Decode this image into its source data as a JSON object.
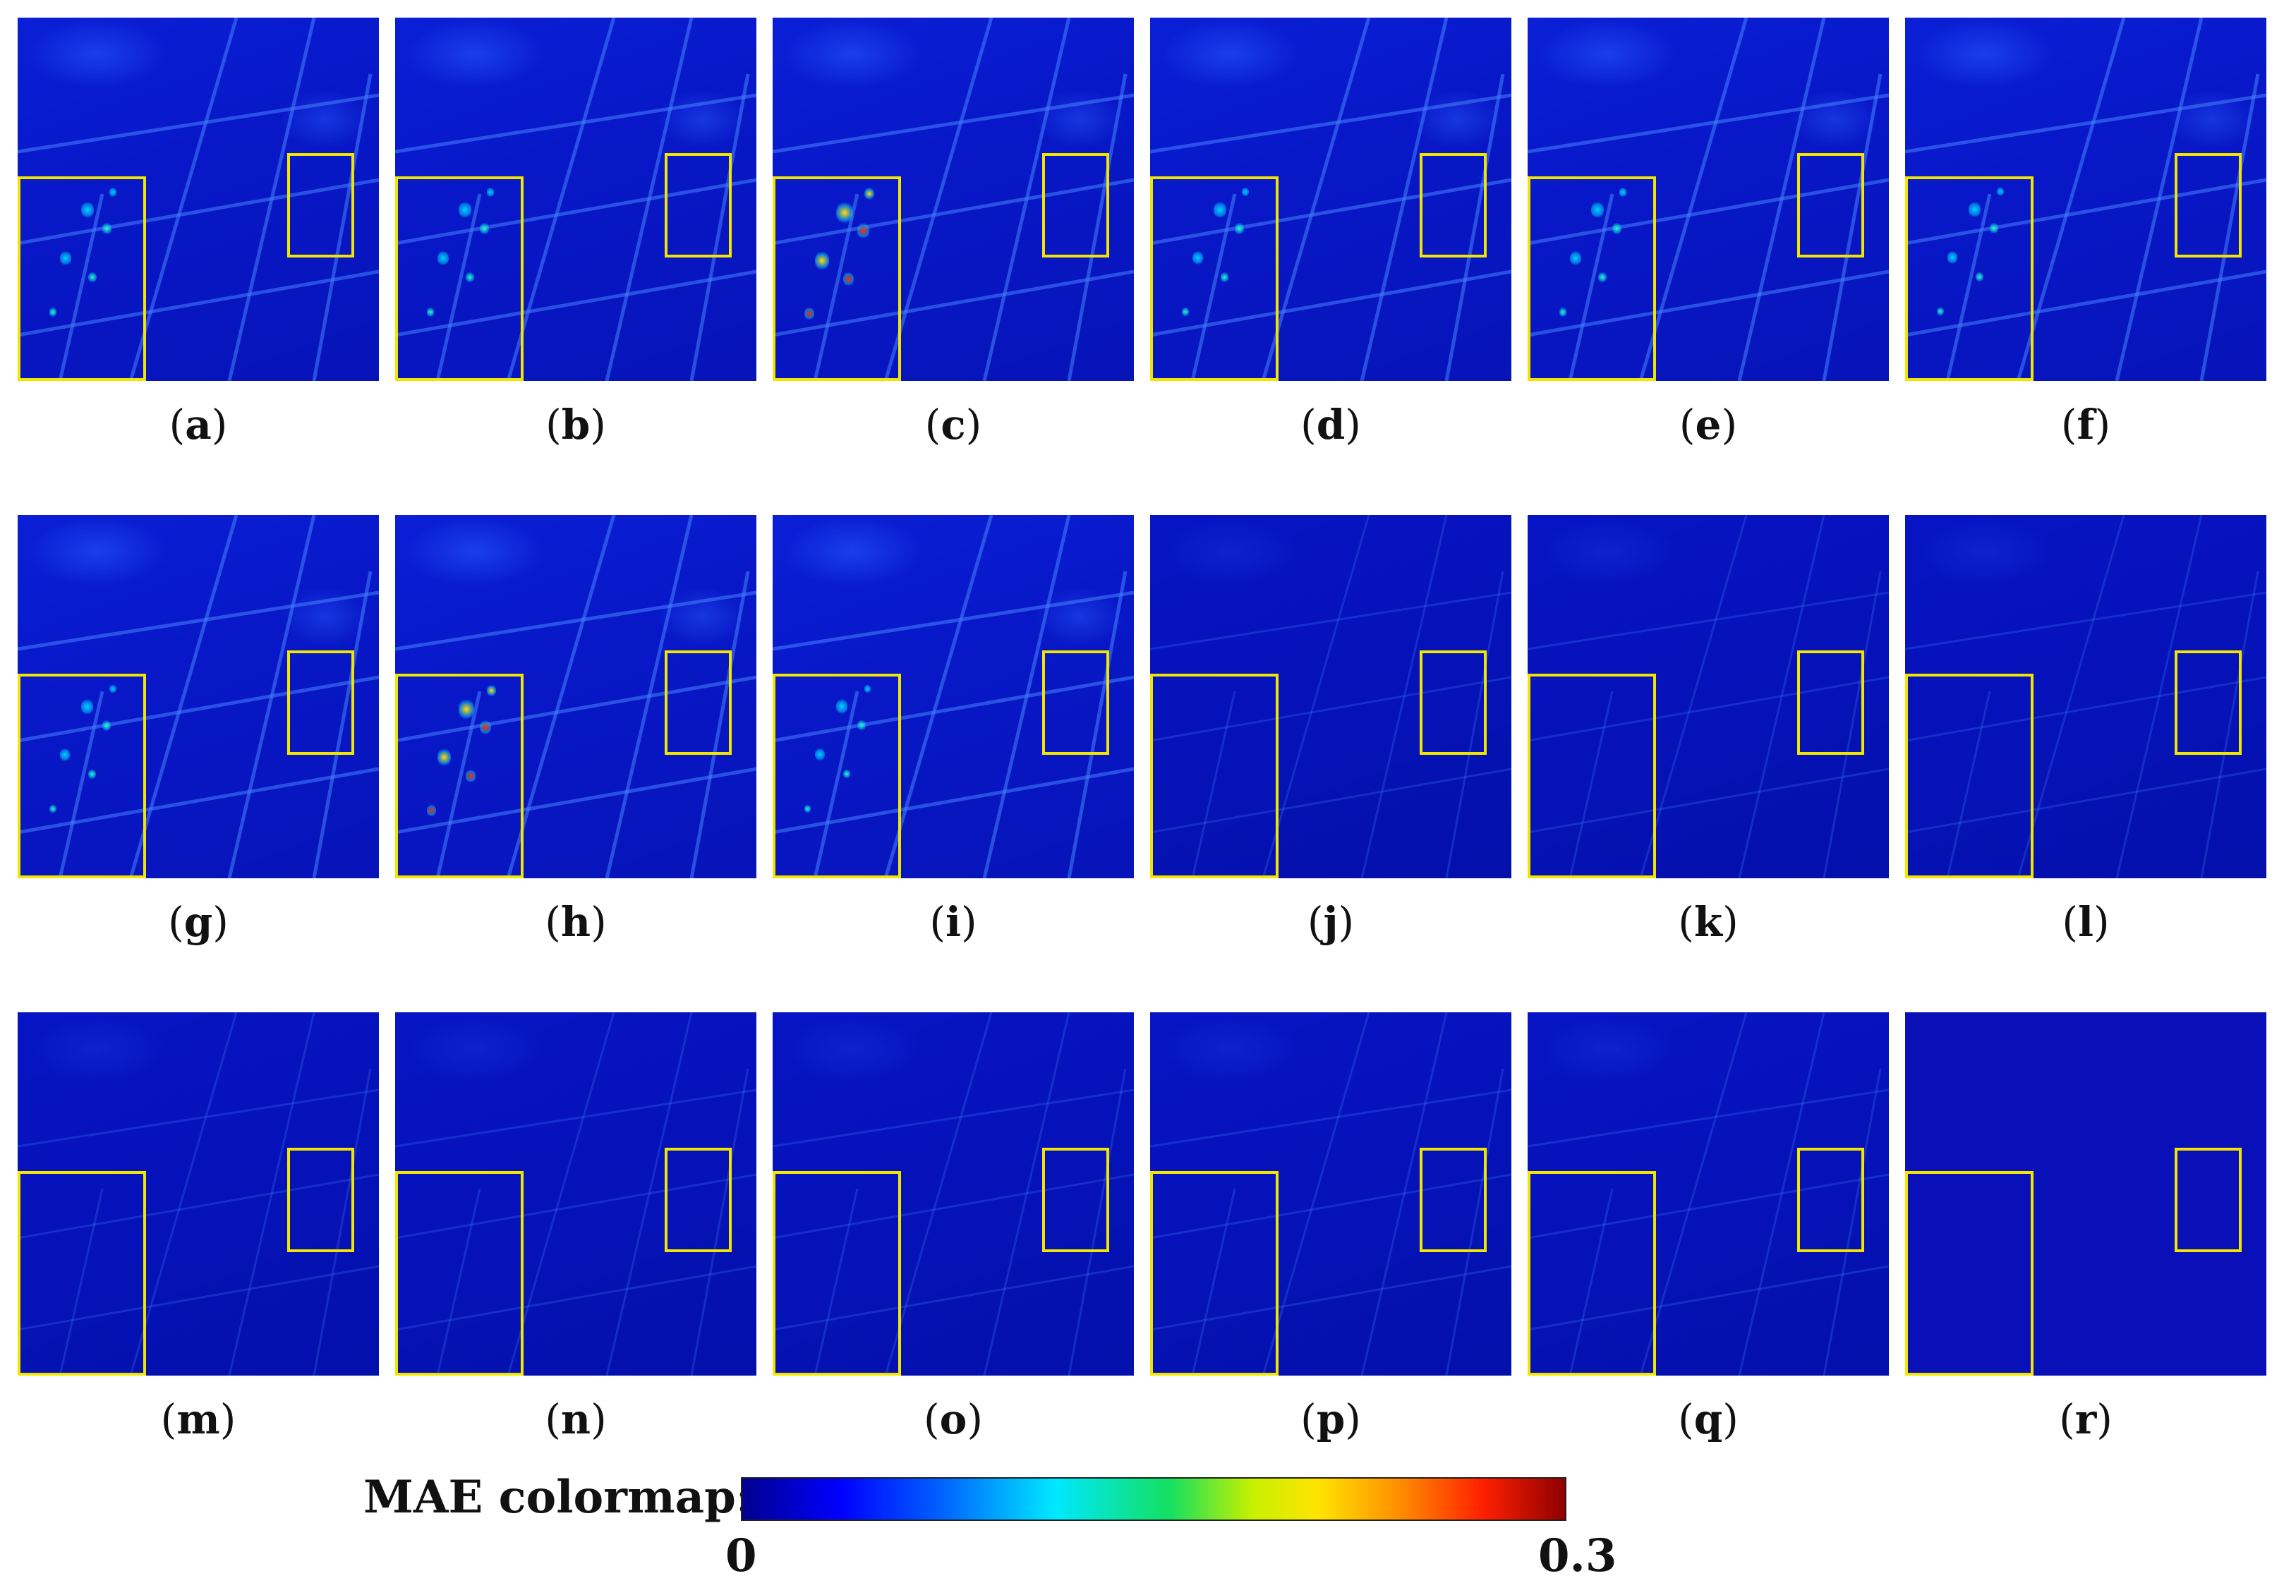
{
  "panels": [
    {
      "label": "(a)",
      "letter": "a",
      "style": "noisy",
      "level": 0.6
    },
    {
      "label": "(b)",
      "letter": "b",
      "style": "noisy",
      "level": 0.6
    },
    {
      "label": "(c)",
      "letter": "c",
      "style": "noisy",
      "level": 1.0
    },
    {
      "label": "(d)",
      "letter": "d",
      "style": "noisy",
      "level": 0.55
    },
    {
      "label": "(e)",
      "letter": "e",
      "style": "noisy",
      "level": 0.6
    },
    {
      "label": "(f)",
      "letter": "f",
      "style": "noisy",
      "level": 0.5
    },
    {
      "label": "(g)",
      "letter": "g",
      "style": "noisy",
      "level": 0.5
    },
    {
      "label": "(h)",
      "letter": "h",
      "style": "noisy",
      "level": 0.9
    },
    {
      "label": "(i)",
      "letter": "i",
      "style": "noisy",
      "level": 0.45
    },
    {
      "label": "(j)",
      "letter": "j",
      "style": "calm",
      "level": 0.15
    },
    {
      "label": "(k)",
      "letter": "k",
      "style": "calm",
      "level": 0.1
    },
    {
      "label": "(l)",
      "letter": "l",
      "style": "calm",
      "level": 0.12
    },
    {
      "label": "(m)",
      "letter": "m",
      "style": "calm",
      "level": 0.15
    },
    {
      "label": "(n)",
      "letter": "n",
      "style": "calm",
      "level": 0.18
    },
    {
      "label": "(o)",
      "letter": "o",
      "style": "calm",
      "level": 0.1
    },
    {
      "label": "(p)",
      "letter": "p",
      "style": "calm",
      "level": 0.1
    },
    {
      "label": "(q)",
      "letter": "q",
      "style": "calm",
      "level": 0.1
    },
    {
      "label": "(r)",
      "letter": "r",
      "style": "flat",
      "level": 0.0
    }
  ],
  "colorbar": {
    "title": "MAE colormap:",
    "min_label": "0",
    "max_label": "0.3"
  },
  "colors": {
    "zoom_box": "#f2e600",
    "low": "#0a10b8",
    "high": "#8f0000"
  }
}
